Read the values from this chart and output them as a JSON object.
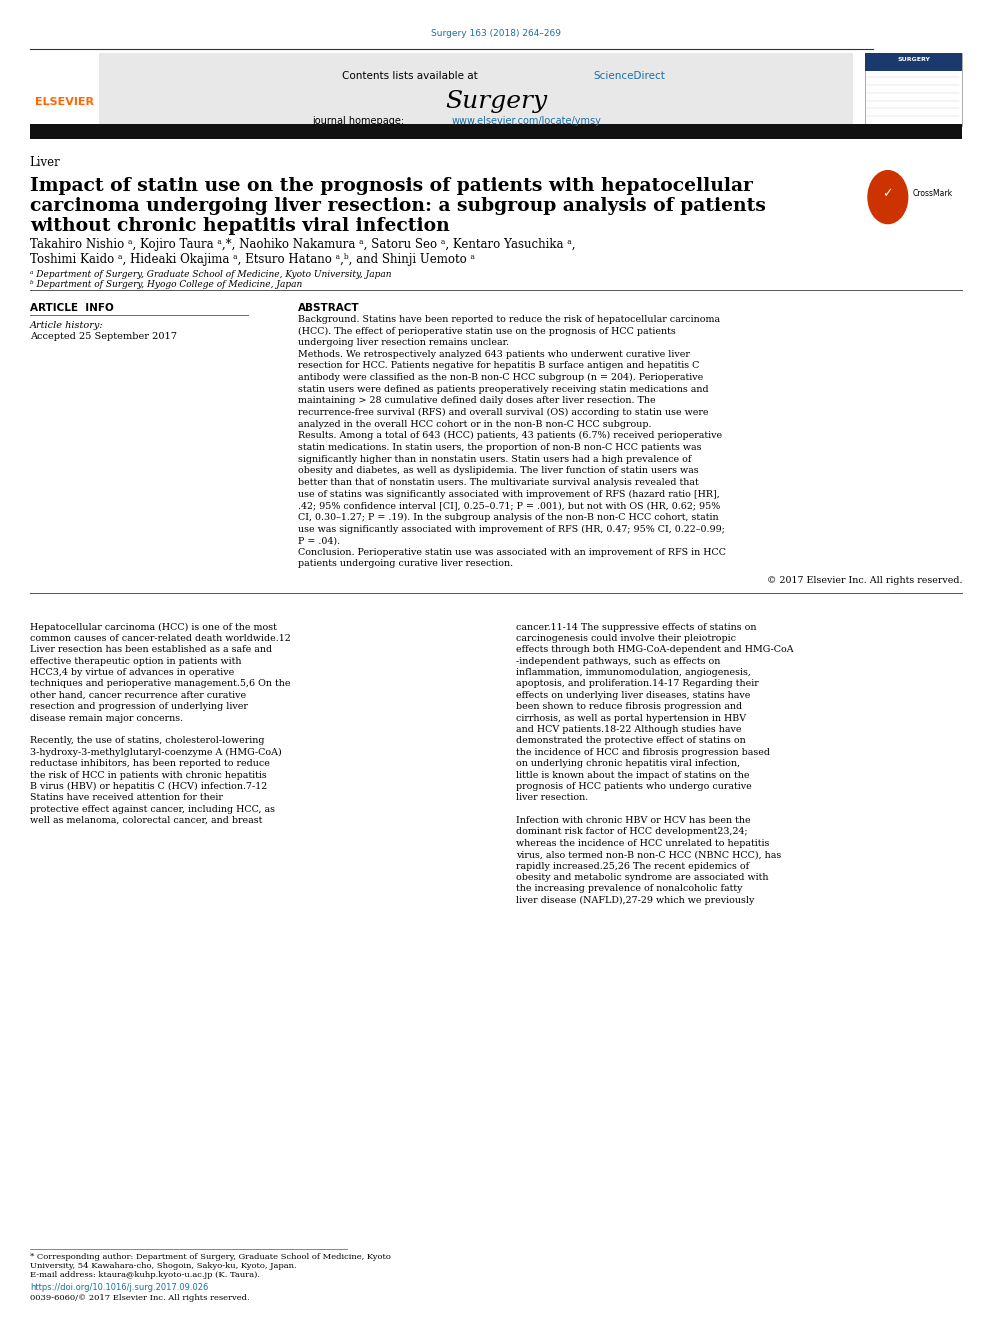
{
  "page_width": 9.92,
  "page_height": 13.23,
  "bg_color": "#ffffff",
  "journal_ref": "Surgery 163 (2018) 264–269",
  "journal_ref_color": "#1a6fa8",
  "header_bg": "#e8e8e8",
  "contents_text": "Contents lists available at ",
  "sciencedirect_text": "ScienceDirect",
  "sciencedirect_color": "#1a6fa8",
  "journal_name": "Surgery",
  "journal_homepage_label": "journal homepage: ",
  "journal_homepage_url": "www.elsevier.com/locate/ymsy",
  "journal_homepage_color": "#1a6fa8",
  "section_label": "Liver",
  "title_line1": "Impact of statin use on the prognosis of patients with hepatocellular",
  "title_line2": "carcinoma undergoing liver resection: a subgroup analysis of patients",
  "title_line3": "without chronic hepatitis viral infection",
  "authors": "Takahiro Nishio ᵃ, Kojiro Taura ᵃ,*, Naohiko Nakamura ᵃ, Satoru Seo ᵃ, Kentaro Yasuchika ᵃ,",
  "authors2": "Toshimi Kaido ᵃ, Hideaki Okajima ᵃ, Etsuro Hatano ᵃ,ᵇ, and Shinji Uemoto ᵃ",
  "affil_a": "ᵃ Department of Surgery, Graduate School of Medicine, Kyoto University, Japan",
  "affil_b": "ᵇ Department of Surgery, Hyogo College of Medicine, Japan",
  "article_info_header": "ARTICLE  INFO",
  "article_history_label": "Article history:",
  "article_history_value": "Accepted 25 September 2017",
  "abstract_header": "ABSTRACT",
  "background_bold": "Background.",
  "background_text": "  Statins have been reported to reduce the risk of hepatocellular carcinoma (HCC). The effect of perioperative statin use on the prognosis of HCC patients undergoing liver resection remains unclear.",
  "methods_bold": "Methods.",
  "methods_text": "  We retrospectively analyzed 643 patients who underwent curative liver resection for HCC. Patients negative for hepatitis B surface antigen and hepatitis C antibody were classified as the non-B non-C HCC subgroup (n = 204). Perioperative statin users were defined as patients preoperatively receiving statin medications and maintaining > 28 cumulative defined daily doses after liver resection. The recurrence-free survival (RFS) and overall survival (OS) according to statin use were analyzed in the overall HCC cohort or in the non-B non-C HCC subgroup.",
  "results_bold": "Results.",
  "results_text": "  Among a total of 643 (HCC) patients, 43 patients (6.7%) received perioperative statin medications. In statin users, the proportion of non-B non-C HCC patients was significantly higher than in nonstatin users. Statin users had a high prevalence of obesity and diabetes, as well as dyslipidemia. The liver function of statin users was better than that of nonstatin users. The multivariate survival analysis revealed that use of statins was significantly associated with improvement of RFS (hazard ratio [HR], .42; 95% confidence interval [CI], 0.25–0.71; P = .001), but not with OS (HR, 0.62; 95% CI, 0.30–1.27; P = .19). In the subgroup analysis of the non-B non-C HCC cohort, statin use was significantly associated with improvement of RFS (HR, 0.47; 95% CI, 0.22–0.99; P = .04).",
  "conclusion_bold": "Conclusion.",
  "conclusion_text": "  Perioperative statin use was associated with an improvement of RFS in HCC patients undergoing curative liver resection.",
  "copyright_text": "© 2017 Elsevier Inc. All rights reserved.",
  "body_para1_left": "    Hepatocellular carcinoma (HCC) is one of the most common causes of cancer-related death worldwide.12 Liver resection has been established as a safe and effective therapeutic option in patients with HCC3,4 by virtue of advances in operative techniques and perioperative management.5,6 On the other hand, cancer recurrence after curative resection and progression of underlying liver disease remain major concerns.",
  "body_para1_right": "cancer.11-14 The suppressive effects of statins on carcinogenesis could involve their pleiotropic effects through both HMG-CoA-dependent and HMG-CoA -independent pathways, such as effects on inflammation, immunomodulation, angiogenesis, apoptosis, and proliferation.14-17 Regarding their effects on underlying liver diseases, statins have been shown to reduce fibrosis progression and cirrhosis, as well as portal hypertension in HBV and HCV patients.18-22 Although studies have demonstrated the protective effect of statins on the incidence of HCC and fibrosis progression based on underlying chronic hepatitis viral infection, little is known about the impact of statins on the prognosis of HCC patients who undergo curative liver resection.",
  "body_para2_left": "    Recently, the use of statins, cholesterol-lowering 3-hydroxy-3-methylglutaryl-coenzyme A (HMG-CoA) reductase inhibitors, has been reported to reduce the risk of HCC in patients with chronic hepatitis B virus (HBV) or hepatitis C (HCV) infection.7-12 Statins have received attention for their protective effect against cancer, including HCC, as well as melanoma, colorectal cancer, and breast",
  "body_para2_right": "    Infection with chronic HBV or HCV has been the dominant risk factor of HCC development23,24; whereas the incidence of HCC unrelated to hepatitis virus, also termed non-B non-C HCC (NBNC HCC), has rapidly increased.25,26 The recent epidemics of obesity and metabolic syndrome are associated with the increasing prevalence of nonalcoholic fatty liver disease (NAFLD),27-29 which we previously",
  "footnote1": "* Corresponding author: Department of Surgery, Graduate School of Medicine, Kyoto",
  "footnote2": "University, 54 Kawahara-cho, Shogoin, Sakyo-ku, Kyoto, Japan.",
  "footnote3": "E-mail address: ktaura@kuhp.kyoto-u.ac.jp (K. Taura).",
  "doi_text": "https://doi.org/10.1016/j.surg.2017.09.026",
  "doi_color": "#1a6fa8",
  "issn_text": "0039-6060/© 2017 Elsevier Inc. All rights reserved.",
  "separator_color": "#000000",
  "thick_separator_color": "#1a1a1a",
  "elsevier_color": "#ff6600",
  "text_color": "#000000"
}
